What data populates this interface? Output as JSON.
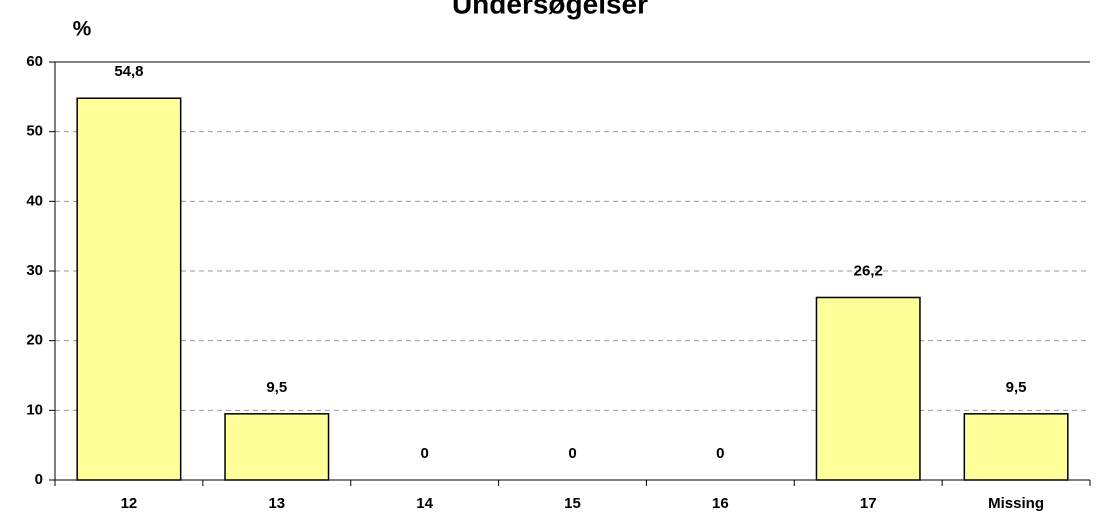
{
  "chart_data": {
    "type": "bar",
    "title": "Undersøgelser",
    "y_label": "%",
    "categories": [
      "12",
      "13",
      "14",
      "15",
      "16",
      "17",
      "Missing"
    ],
    "values": [
      54.8,
      9.5,
      0,
      0,
      0,
      26.2,
      9.5
    ],
    "value_labels": [
      "54,8",
      "9,5",
      "0",
      "0",
      "0",
      "26,2",
      "9,5"
    ],
    "color": "#ffff99",
    "ylim": [
      0,
      60
    ],
    "yticks": [
      0,
      10,
      20,
      30,
      40,
      50,
      60
    ],
    "grid": true
  }
}
